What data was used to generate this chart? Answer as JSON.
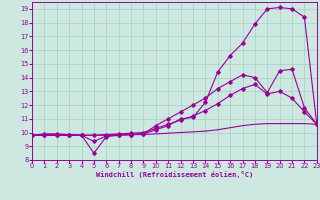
{
  "xlabel": "Windchill (Refroidissement éolien,°C)",
  "bg_color": "#cce8e0",
  "grid_color": "#99ccbb",
  "line_color": "#990099",
  "xlim": [
    0,
    23
  ],
  "ylim": [
    8.0,
    19.5
  ],
  "xticks": [
    0,
    1,
    2,
    3,
    4,
    5,
    6,
    7,
    8,
    9,
    10,
    11,
    12,
    13,
    14,
    15,
    16,
    17,
    18,
    19,
    20,
    21,
    22,
    23
  ],
  "yticks": [
    8,
    9,
    10,
    11,
    12,
    13,
    14,
    15,
    16,
    17,
    18,
    19
  ],
  "curve1_x": [
    0,
    1,
    2,
    3,
    4,
    5,
    6,
    7,
    8,
    9,
    10,
    11,
    12,
    13,
    14,
    15,
    16,
    17,
    18,
    19,
    20,
    21,
    22,
    23
  ],
  "curve1_y": [
    9.8,
    9.9,
    9.9,
    9.85,
    9.8,
    9.35,
    9.75,
    9.85,
    9.85,
    9.9,
    10.2,
    10.5,
    11.0,
    11.1,
    12.2,
    14.4,
    15.6,
    16.5,
    17.9,
    19.0,
    19.1,
    19.0,
    18.4,
    10.6
  ],
  "curve2_x": [
    0,
    1,
    2,
    3,
    4,
    5,
    6,
    7,
    8,
    9,
    10,
    11,
    12,
    13,
    14,
    15,
    16,
    17,
    18,
    19,
    20,
    21,
    22,
    23
  ],
  "curve2_y": [
    9.8,
    9.85,
    9.85,
    9.85,
    9.8,
    8.5,
    9.7,
    9.8,
    9.85,
    9.9,
    10.5,
    11.0,
    11.5,
    12.0,
    12.5,
    13.2,
    13.7,
    14.2,
    14.0,
    12.9,
    14.5,
    14.6,
    11.8,
    10.6
  ],
  "curve3_x": [
    0,
    1,
    2,
    3,
    4,
    5,
    6,
    7,
    8,
    9,
    10,
    11,
    12,
    13,
    14,
    15,
    16,
    17,
    18,
    19,
    20,
    21,
    22,
    23
  ],
  "curve3_y": [
    9.8,
    9.8,
    9.8,
    9.8,
    9.8,
    9.8,
    9.85,
    9.9,
    9.95,
    10.0,
    10.3,
    10.6,
    10.9,
    11.2,
    11.6,
    12.1,
    12.7,
    13.2,
    13.5,
    12.8,
    13.0,
    12.5,
    11.5,
    10.6
  ],
  "curve4_x": [
    0,
    1,
    2,
    3,
    4,
    5,
    6,
    7,
    8,
    9,
    10,
    11,
    12,
    13,
    14,
    15,
    16,
    17,
    18,
    19,
    20,
    21,
    22,
    23
  ],
  "curve4_y": [
    9.8,
    9.8,
    9.8,
    9.8,
    9.8,
    9.8,
    9.8,
    9.82,
    9.84,
    9.86,
    9.9,
    9.95,
    10.0,
    10.05,
    10.1,
    10.2,
    10.35,
    10.5,
    10.6,
    10.65,
    10.65,
    10.65,
    10.65,
    10.6
  ]
}
